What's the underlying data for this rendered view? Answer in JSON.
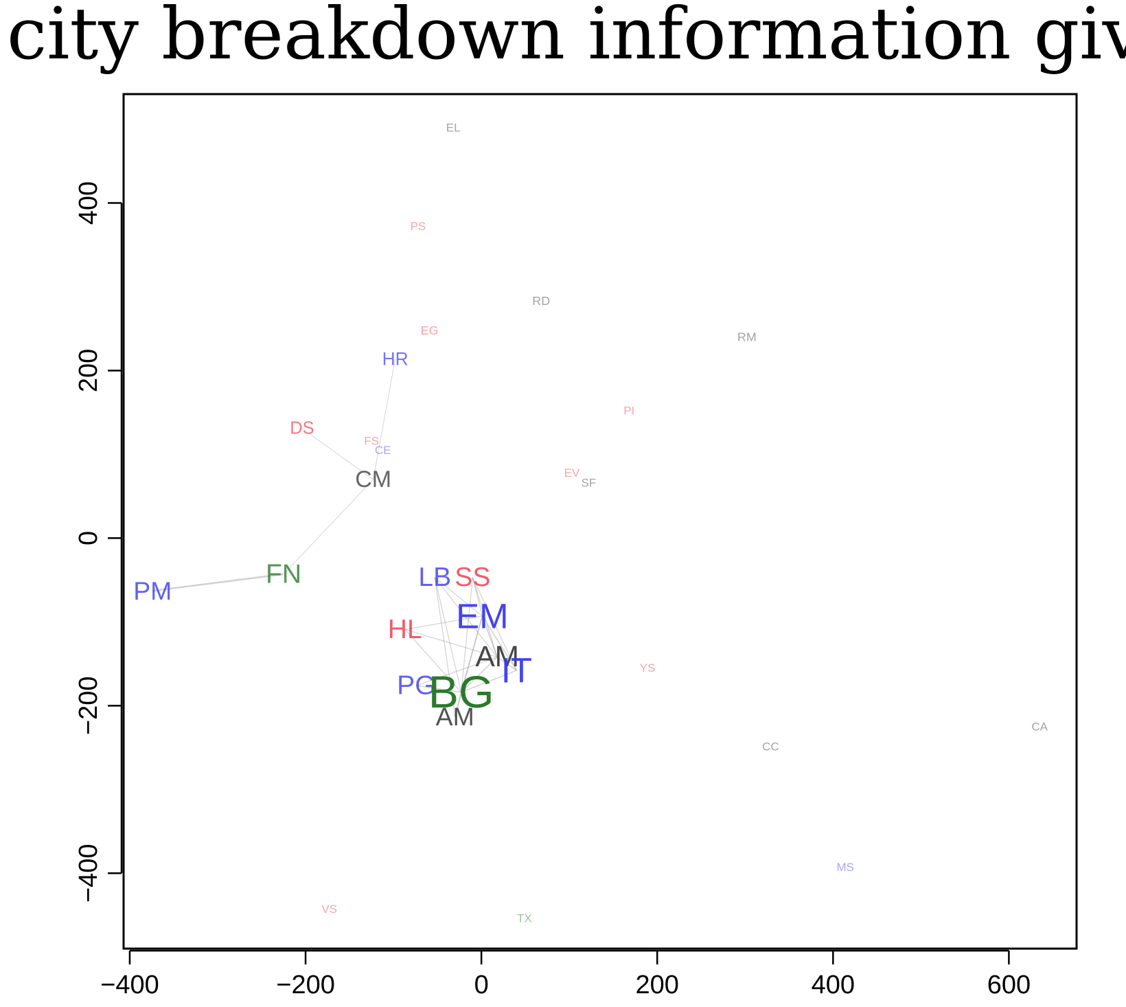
{
  "chart_data": {
    "type": "scatter",
    "title": "city breakdown information give",
    "xlabel": "",
    "ylabel": "",
    "xlim": [
      -407,
      677
    ],
    "ylim": [
      -490,
      530
    ],
    "grid": false,
    "legend": "none",
    "x_ticks": [
      {
        "value": -400,
        "label": "−400"
      },
      {
        "value": -200,
        "label": "−200"
      },
      {
        "value": 0,
        "label": "0"
      },
      {
        "value": 200,
        "label": "200"
      },
      {
        "value": 400,
        "label": "400"
      },
      {
        "value": 600,
        "label": "600"
      }
    ],
    "y_ticks": [
      {
        "value": 400,
        "label": "400"
      },
      {
        "value": 200,
        "label": "200"
      },
      {
        "value": 0,
        "label": "0"
      },
      {
        "value": -200,
        "label": "−200"
      },
      {
        "value": -400,
        "label": "−400"
      }
    ],
    "colors": {
      "blue": "#3a3aee",
      "red": "#ee3344",
      "green": "#2b7a2b",
      "gray": "#333333",
      "edge": "#9a9a9a"
    },
    "points": [
      {
        "id": "EL",
        "label": "EL",
        "x": -32,
        "y": 490,
        "color": "gray",
        "size": 1.0,
        "alpha": 0.45
      },
      {
        "id": "PS",
        "label": "PS",
        "x": -72,
        "y": 372,
        "color": "red",
        "size": 1.0,
        "alpha": 0.45
      },
      {
        "id": "RD",
        "label": "RD",
        "x": 68,
        "y": 283,
        "color": "gray",
        "size": 1.05,
        "alpha": 0.45
      },
      {
        "id": "EG",
        "label": "EG",
        "x": -59,
        "y": 248,
        "color": "red",
        "size": 1.05,
        "alpha": 0.45
      },
      {
        "id": "RM",
        "label": "RM",
        "x": 302,
        "y": 240,
        "color": "gray",
        "size": 1.05,
        "alpha": 0.45
      },
      {
        "id": "HR",
        "label": "HR",
        "x": -98,
        "y": 214,
        "color": "blue",
        "size": 1.55,
        "alpha": 0.7
      },
      {
        "id": "PI",
        "label": "PI",
        "x": 168,
        "y": 152,
        "color": "red",
        "size": 1.0,
        "alpha": 0.45
      },
      {
        "id": "DS",
        "label": "DS",
        "x": -204,
        "y": 131,
        "color": "red",
        "size": 1.5,
        "alpha": 0.65
      },
      {
        "id": "FS",
        "label": "FS",
        "x": -125,
        "y": 116,
        "color": "red",
        "size": 1.0,
        "alpha": 0.45
      },
      {
        "id": "CE",
        "label": "CE",
        "x": -112,
        "y": 105,
        "color": "blue",
        "size": 1.0,
        "alpha": 0.45
      },
      {
        "id": "EV",
        "label": "EV",
        "x": 103,
        "y": 78,
        "color": "red",
        "size": 1.0,
        "alpha": 0.45
      },
      {
        "id": "SF",
        "label": "SF",
        "x": 122,
        "y": 66,
        "color": "gray",
        "size": 1.0,
        "alpha": 0.45
      },
      {
        "id": "CM",
        "label": "CM",
        "x": -123,
        "y": 70,
        "color": "gray",
        "size": 2.0,
        "alpha": 0.75
      },
      {
        "id": "FN",
        "label": "FN",
        "x": -225,
        "y": -43,
        "color": "green",
        "size": 2.3,
        "alpha": 0.8
      },
      {
        "id": "PM",
        "label": "PM",
        "x": -374,
        "y": -63,
        "color": "blue",
        "size": 2.2,
        "alpha": 0.8
      },
      {
        "id": "LB",
        "label": "LB",
        "x": -53,
        "y": -47,
        "color": "blue",
        "size": 2.3,
        "alpha": 0.8
      },
      {
        "id": "SS",
        "label": "SS",
        "x": -10,
        "y": -47,
        "color": "red",
        "size": 2.3,
        "alpha": 0.8
      },
      {
        "id": "EM",
        "label": "EM",
        "x": 1,
        "y": -93,
        "color": "blue",
        "size": 3.0,
        "alpha": 0.95
      },
      {
        "id": "HL",
        "label": "HL",
        "x": -87,
        "y": -109,
        "color": "red",
        "size": 2.3,
        "alpha": 0.8
      },
      {
        "id": "AM",
        "label": "AM",
        "x": 18,
        "y": -142,
        "color": "gray",
        "size": 2.5,
        "alpha": 0.9
      },
      {
        "id": "IT",
        "label": "IT",
        "x": 40,
        "y": -158,
        "color": "blue",
        "size": 3.0,
        "alpha": 0.95
      },
      {
        "id": "YS",
        "label": "YS",
        "x": 189,
        "y": -155,
        "color": "red",
        "size": 1.0,
        "alpha": 0.45
      },
      {
        "id": "PG",
        "label": "PG",
        "x": -74,
        "y": -176,
        "color": "blue",
        "size": 2.3,
        "alpha": 0.8
      },
      {
        "id": "BG",
        "label": "BG",
        "x": -23,
        "y": -184,
        "color": "green",
        "size": 3.9,
        "alpha": 1.0
      },
      {
        "id": "AM2",
        "label": "AM",
        "x": -30,
        "y": -213,
        "color": "gray",
        "size": 2.2,
        "alpha": 0.85
      },
      {
        "id": "CA",
        "label": "CA",
        "x": 635,
        "y": -225,
        "color": "gray",
        "size": 1.0,
        "alpha": 0.45
      },
      {
        "id": "CC",
        "label": "CC",
        "x": 329,
        "y": -249,
        "color": "gray",
        "size": 1.0,
        "alpha": 0.45
      },
      {
        "id": "MS",
        "label": "MS",
        "x": 414,
        "y": -393,
        "color": "blue",
        "size": 1.0,
        "alpha": 0.45
      },
      {
        "id": "VS",
        "label": "VS",
        "x": -173,
        "y": -443,
        "color": "red",
        "size": 1.0,
        "alpha": 0.45
      },
      {
        "id": "TX",
        "label": "TX",
        "x": 49,
        "y": -454,
        "color": "green",
        "size": 1.0,
        "alpha": 0.45
      }
    ],
    "edges": [
      {
        "from": "PM",
        "to": "FN",
        "weight": 2.5
      },
      {
        "from": "FN",
        "to": "CM",
        "weight": 0.9
      },
      {
        "from": "CM",
        "to": "DS",
        "weight": 0.9
      },
      {
        "from": "CM",
        "to": "HR",
        "weight": 0.9
      },
      {
        "from": "LB",
        "to": "EM",
        "weight": 1.2
      },
      {
        "from": "LB",
        "to": "AM",
        "weight": 1.2
      },
      {
        "from": "LB",
        "to": "BG",
        "weight": 1.2
      },
      {
        "from": "LB",
        "to": "AM2",
        "weight": 1.2
      },
      {
        "from": "SS",
        "to": "EM",
        "weight": 1.2
      },
      {
        "from": "SS",
        "to": "AM",
        "weight": 1.2
      },
      {
        "from": "SS",
        "to": "BG",
        "weight": 1.2
      },
      {
        "from": "SS",
        "to": "IT",
        "weight": 1.2
      },
      {
        "from": "HL",
        "to": "EM",
        "weight": 1.2
      },
      {
        "from": "HL",
        "to": "BG",
        "weight": 1.2
      },
      {
        "from": "HL",
        "to": "AM",
        "weight": 1.2
      },
      {
        "from": "EM",
        "to": "AM",
        "weight": 1.5
      },
      {
        "from": "EM",
        "to": "BG",
        "weight": 1.5
      },
      {
        "from": "EM",
        "to": "IT",
        "weight": 1.5
      },
      {
        "from": "AM",
        "to": "BG",
        "weight": 1.5
      },
      {
        "from": "AM",
        "to": "IT",
        "weight": 1.5
      },
      {
        "from": "PG",
        "to": "BG",
        "weight": 1.5
      },
      {
        "from": "PG",
        "to": "AM",
        "weight": 1.2
      },
      {
        "from": "BG",
        "to": "IT",
        "weight": 1.5
      },
      {
        "from": "BG",
        "to": "AM2",
        "weight": 1.5
      },
      {
        "from": "AM2",
        "to": "EM",
        "weight": 1.2
      }
    ]
  }
}
